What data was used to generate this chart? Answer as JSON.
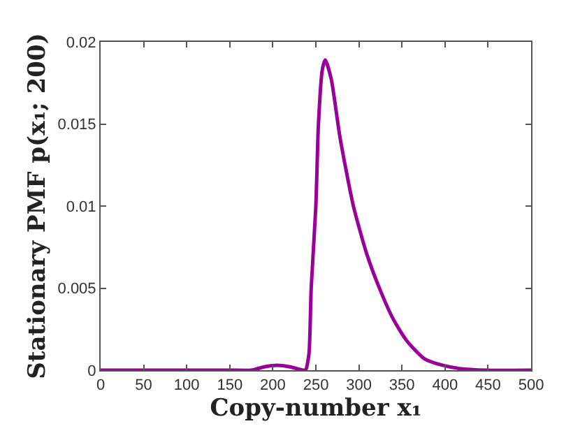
{
  "chart_data": {
    "type": "line",
    "xlabel": "Copy-number x₁",
    "ylabel": "Stationary PMF p(x₁; 200)",
    "x": [
      0,
      50,
      100,
      150,
      175,
      190,
      205,
      220,
      235,
      238,
      242,
      244.6,
      250,
      253,
      257.5,
      261,
      268,
      278,
      293.6,
      309,
      324.6,
      340,
      355.5,
      376,
      397,
      417,
      448,
      500
    ],
    "series": [
      {
        "color": "#990099",
        "values": [
          0,
          0,
          0,
          0,
          0,
          0.0002,
          0.0003,
          0.0002,
          0,
          0,
          0.001,
          0.005,
          0.01,
          0.015,
          0.0183,
          0.0189,
          0.0177,
          0.0142,
          0.01,
          0.0071,
          0.0049,
          0.0031,
          0.0018,
          0.0007,
          0.0003,
          0.0001,
          0,
          0
        ]
      }
    ],
    "xlim": [
      0,
      500
    ],
    "xticks": [
      0,
      50,
      100,
      150,
      200,
      250,
      300,
      350,
      400,
      450,
      500
    ],
    "ylim": [
      0,
      0.02
    ],
    "yticks": [
      0,
      0.005,
      0.01,
      0.015,
      0.02
    ],
    "marker": "none",
    "line_style": "solid"
  }
}
